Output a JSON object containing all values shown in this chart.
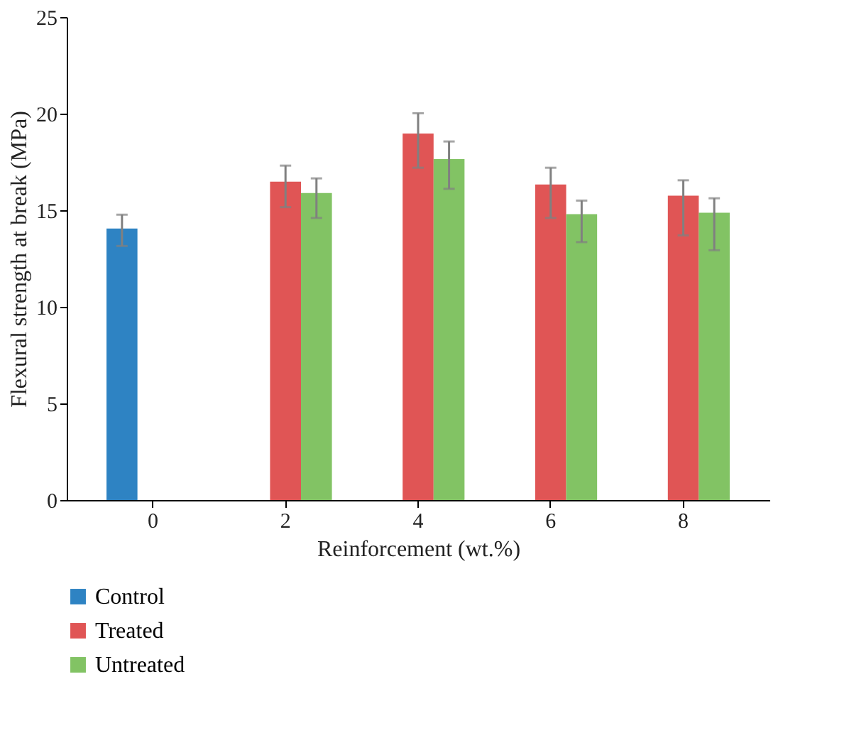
{
  "chart_data": {
    "type": "bar",
    "xlabel": "Reinforcement (wt.%)",
    "ylabel": "Flexural strength at break (MPa)",
    "categories": [
      "0",
      "2",
      "4",
      "6",
      "8"
    ],
    "series": [
      {
        "name": "Control",
        "color": "#2e83c3",
        "values": [
          14.05,
          null,
          null,
          null,
          null
        ],
        "errors": [
          [
            13.15,
            14.77
          ],
          null,
          null,
          null,
          null
        ]
      },
      {
        "name": "Treated",
        "color": "#e05555",
        "values": [
          null,
          16.48,
          18.97,
          16.33,
          15.75
        ],
        "errors": [
          null,
          [
            15.16,
            17.31
          ],
          [
            17.2,
            20.02
          ],
          [
            14.6,
            17.2
          ],
          [
            13.7,
            16.55
          ]
        ]
      },
      {
        "name": "Untreated",
        "color": "#82c364",
        "values": [
          null,
          15.89,
          17.65,
          14.8,
          14.87
        ],
        "errors": [
          null,
          [
            14.6,
            16.65
          ],
          [
            16.11,
            18.56
          ],
          [
            13.35,
            15.5
          ],
          [
            12.93,
            15.62
          ]
        ]
      }
    ],
    "ylim": [
      0,
      25
    ],
    "yticks": [
      0,
      5,
      10,
      15,
      20,
      25
    ],
    "grid": false,
    "legend": "bottom left"
  }
}
